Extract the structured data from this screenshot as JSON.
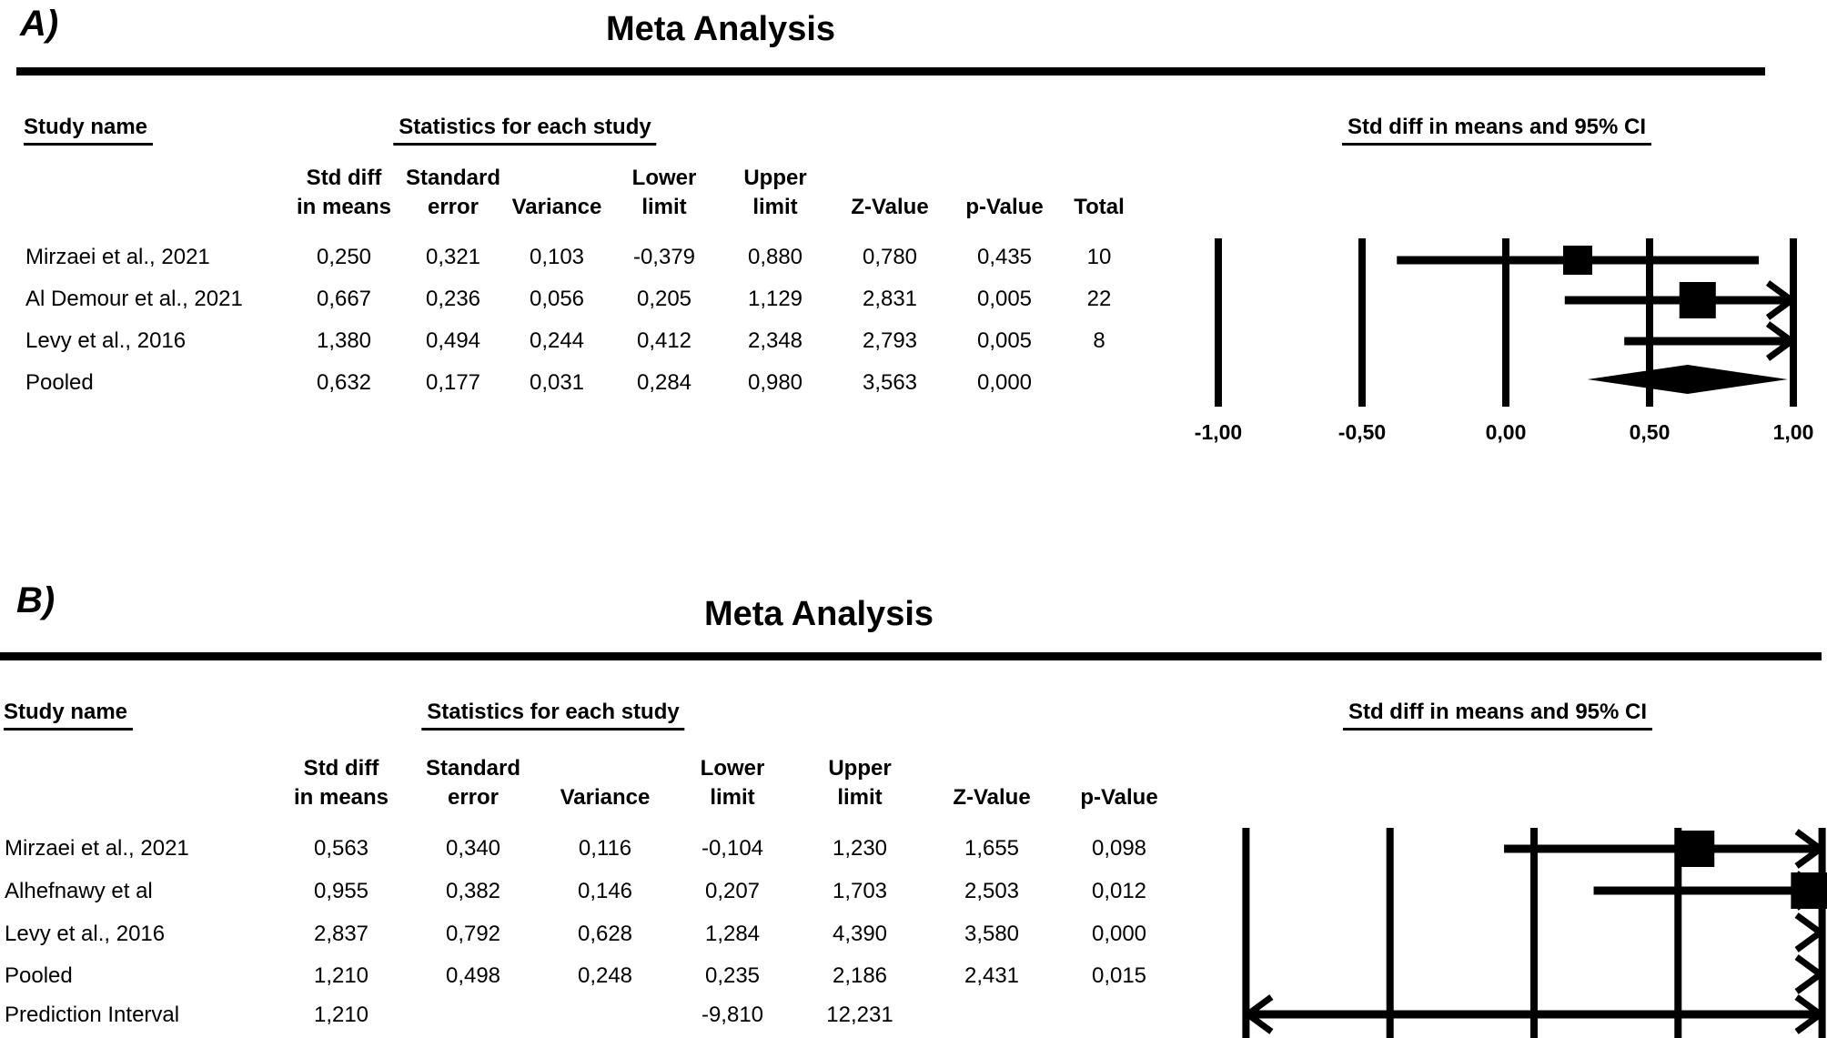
{
  "colors": {
    "foreground": "#000000",
    "background": "#ffffff"
  },
  "panels": [
    {
      "label": "A)",
      "title": "Meta Analysis",
      "study_header": "Study name",
      "stats_header": "Statistics for each study",
      "ci_header": "Std diff in means and 95% CI",
      "columns": [
        [
          "Std diff",
          "in means"
        ],
        [
          "Standard",
          "error"
        ],
        [
          "",
          "Variance"
        ],
        [
          "Lower",
          "limit"
        ],
        [
          "Upper",
          "limit"
        ],
        [
          "",
          "Z-Value"
        ],
        [
          "",
          "p-Value"
        ],
        [
          "",
          "Total"
        ]
      ],
      "rows": [
        {
          "name": "Mirzaei et al., 2021",
          "values": [
            "0,250",
            "0,321",
            "0,103",
            "-0,379",
            "0,880",
            "0,780",
            "0,435",
            "10"
          ]
        },
        {
          "name": "Al Demour et al., 2021",
          "values": [
            "0,667",
            "0,236",
            "0,056",
            "0,205",
            "1,129",
            "2,831",
            "0,005",
            "22"
          ]
        },
        {
          "name": "Levy et al., 2016",
          "values": [
            "1,380",
            "0,494",
            "0,244",
            "0,412",
            "2,348",
            "2,793",
            "0,005",
            "8"
          ]
        },
        {
          "name": "Pooled",
          "values": [
            "0,632",
            "0,177",
            "0,031",
            "0,284",
            "0,980",
            "3,563",
            "0,000",
            ""
          ]
        }
      ]
    },
    {
      "label": "B)",
      "title": "Meta Analysis",
      "study_header": "Study name",
      "stats_header": "Statistics for each study",
      "ci_header": "Std diff in means and 95% CI",
      "columns": [
        [
          "Std diff",
          "in means"
        ],
        [
          "Standard",
          "error"
        ],
        [
          "",
          "Variance"
        ],
        [
          "Lower",
          "limit"
        ],
        [
          "Upper",
          "limit"
        ],
        [
          "",
          "Z-Value"
        ],
        [
          "",
          "p-Value"
        ]
      ],
      "rows": [
        {
          "name": "Mirzaei et al., 2021",
          "values": [
            "0,563",
            "0,340",
            "0,116",
            "-0,104",
            "1,230",
            "1,655",
            "0,098"
          ]
        },
        {
          "name": "Alhefnawy et al",
          "values": [
            "0,955",
            "0,382",
            "0,146",
            "0,207",
            "1,703",
            "2,503",
            "0,012"
          ]
        },
        {
          "name": "Levy et al., 2016",
          "values": [
            "2,837",
            "0,792",
            "0,628",
            "1,284",
            "4,390",
            "3,580",
            "0,000"
          ]
        },
        {
          "name": "Pooled",
          "values": [
            "1,210",
            "0,498",
            "0,248",
            "0,235",
            "2,186",
            "2,431",
            "0,015"
          ]
        },
        {
          "name": "Prediction Interval",
          "values": [
            "1,210",
            "",
            "",
            "-9,810",
            "12,231",
            "",
            ""
          ]
        }
      ]
    }
  ],
  "chart_data": [
    {
      "type": "forest",
      "panel": "A",
      "title": "Meta Analysis",
      "effect_label": "Std diff in means and 95% CI",
      "axis_range": [
        -1,
        1
      ],
      "ticks": [
        -1,
        -0.5,
        0,
        0.5,
        1
      ],
      "tick_labels": [
        "-1,00",
        "-0,50",
        "0,00",
        "0,50",
        "1,00"
      ],
      "rows": [
        {
          "study": "Mirzaei et al., 2021",
          "mean": 0.25,
          "lower": -0.379,
          "upper": 0.88,
          "marker": "square"
        },
        {
          "study": "Al Demour et al., 2021",
          "mean": 0.667,
          "lower": 0.205,
          "upper": 1.129,
          "marker": "square"
        },
        {
          "study": "Levy et al., 2016",
          "mean": 1.38,
          "lower": 0.412,
          "upper": 2.348,
          "marker": "square"
        },
        {
          "study": "Pooled",
          "mean": 0.632,
          "lower": 0.284,
          "upper": 0.98,
          "marker": "diamond"
        }
      ]
    },
    {
      "type": "forest",
      "panel": "B",
      "title": "Meta Analysis",
      "effect_label": "Std diff in means and 95% CI",
      "axis_range": [
        -1,
        1
      ],
      "ticks": [
        -1,
        -0.5,
        0,
        0.5,
        1
      ],
      "tick_labels": [],
      "rows": [
        {
          "study": "Mirzaei et al., 2021",
          "mean": 0.563,
          "lower": -0.104,
          "upper": 1.23,
          "marker": "square"
        },
        {
          "study": "Alhefnawy et al",
          "mean": 0.955,
          "lower": 0.207,
          "upper": 1.703,
          "marker": "square"
        },
        {
          "study": "Levy et al., 2016",
          "mean": 2.837,
          "lower": 1.284,
          "upper": 4.39,
          "marker": "arrow-only"
        },
        {
          "study": "Pooled",
          "mean": 1.21,
          "lower": 0.235,
          "upper": 2.186,
          "marker": "arrow-only"
        },
        {
          "study": "Prediction Interval",
          "mean": 1.21,
          "lower": -9.81,
          "upper": 12.231,
          "marker": "double-arrow"
        }
      ]
    }
  ]
}
